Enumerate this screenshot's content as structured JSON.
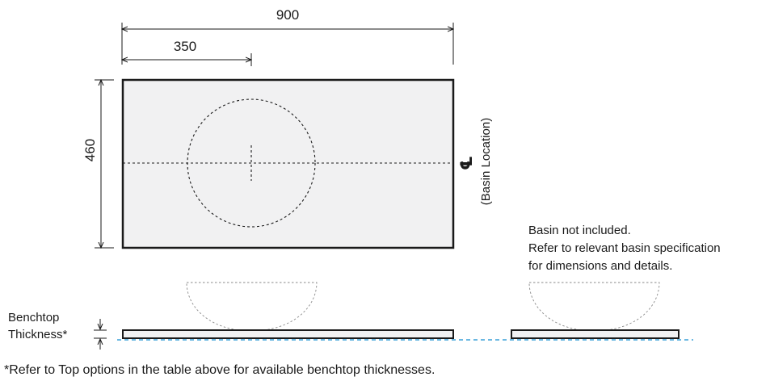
{
  "diagram": {
    "dimensions": {
      "overall_width": "900",
      "basin_offset": "350",
      "depth": "460"
    },
    "centreline_symbol": "℄",
    "centreline_label": "(Basin Location)",
    "thickness_label_line1": "Benchtop",
    "thickness_label_line2": "Thickness*",
    "basin_note_line1": "Basin not included.",
    "basin_note_line2": "Refer to relevant basin specification",
    "basin_note_line3": "for dimensions and details.",
    "footnote": "*Refer to Top options in the table above for available benchtop thicknesses."
  },
  "colors": {
    "line": "#1a1a1a",
    "benchtop_fill": "#f1f1f2",
    "floor_dash": "#3aa0d8"
  }
}
